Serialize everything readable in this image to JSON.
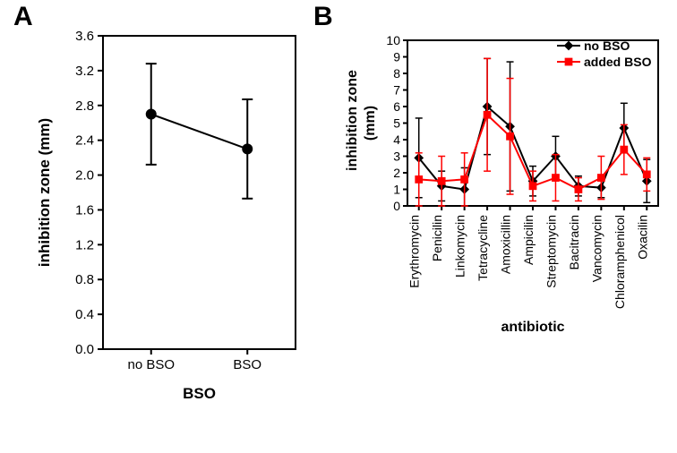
{
  "panelA": {
    "label": "A",
    "type": "line-errorbar",
    "ylabel": "inhibition zone (mm)",
    "xlabel": "BSO",
    "ylim": [
      0,
      3.6
    ],
    "ytick_step": 0.4,
    "yticks": [
      0.0,
      0.4,
      0.8,
      1.2,
      1.6,
      2.0,
      2.4,
      2.8,
      3.2,
      3.6
    ],
    "categories": [
      "no BSO",
      "BSO"
    ],
    "values": [
      2.7,
      2.3
    ],
    "err": [
      0.58,
      0.57
    ],
    "marker": "circle",
    "marker_size": 6,
    "line_width": 2,
    "errorbar_width": 2,
    "color": "#000000",
    "background_color": "#ffffff",
    "axis_color": "#000000",
    "label_fontsize": 17,
    "tick_fontsize": 15
  },
  "panelB": {
    "label": "B",
    "type": "line-errorbar-multi",
    "ylabel": "inhibition zone\n(mm)",
    "xlabel": "antibiotic",
    "ylim": [
      0,
      10
    ],
    "ytick_step": 1,
    "yticks": [
      0,
      1,
      2,
      3,
      4,
      5,
      6,
      7,
      8,
      9,
      10
    ],
    "categories": [
      "Erythromycin",
      "Penicilin",
      "Linkomycin",
      "Tetracycline",
      "Amoxicillin",
      "Ampicilin",
      "Streptomycin",
      "Bacitracin",
      "Vancomycin",
      "Chloramphenicol",
      "Oxacilin"
    ],
    "series": [
      {
        "name": "no BSO",
        "color": "#000000",
        "marker": "diamond",
        "marker_size": 7,
        "line_width": 2,
        "values": [
          2.9,
          1.2,
          1.0,
          6.0,
          4.8,
          1.5,
          3.0,
          1.2,
          1.1,
          4.7,
          1.5
        ],
        "err": [
          2.4,
          0.9,
          1.3,
          2.9,
          3.9,
          0.9,
          1.2,
          0.6,
          0.6,
          1.5,
          1.3
        ]
      },
      {
        "name": "added BSO",
        "color": "#ff0000",
        "marker": "square",
        "marker_size": 7,
        "line_width": 2,
        "values": [
          1.6,
          1.5,
          1.6,
          5.5,
          4.2,
          1.2,
          1.7,
          1.0,
          1.7,
          3.4,
          1.9
        ],
        "err": [
          1.6,
          1.5,
          1.6,
          3.4,
          3.5,
          0.9,
          1.4,
          0.7,
          1.3,
          1.5,
          1.0
        ]
      }
    ],
    "legend": {
      "position": "top-right",
      "items": [
        "no BSO",
        "added BSO"
      ]
    },
    "background_color": "#ffffff",
    "axis_color": "#000000",
    "label_fontsize": 16,
    "tick_fontsize": 14
  }
}
